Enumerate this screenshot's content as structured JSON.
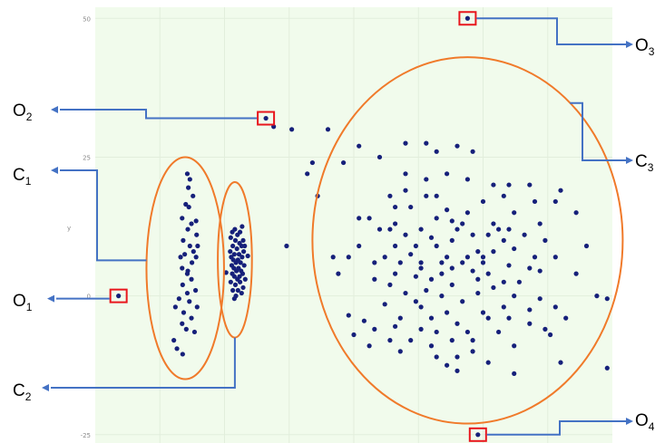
{
  "chart_data": {
    "type": "scatter",
    "title": "",
    "xlabel": "",
    "ylabel": "",
    "grid": true,
    "background": "#f1fbec",
    "point_color": "#16207a",
    "cluster_outline_color": "#f07a2a",
    "outlier_box_color": "#e8161d",
    "annotation_line_color": "#4472c4",
    "xlim": [
      0,
      100
    ],
    "ylim": [
      -26.5,
      52
    ],
    "yticks": [
      "50",
      "25",
      "0",
      "-25"
    ],
    "y_axis_marker": "y",
    "clusters": [
      {
        "label": "C",
        "sub": "1",
        "cx": 17.4,
        "cy": 5,
        "rx": 7.5,
        "ry": 20,
        "points": [
          [
            17.8,
            22
          ],
          [
            18.3,
            21
          ],
          [
            18.0,
            19.5
          ],
          [
            18.9,
            18
          ],
          [
            17.5,
            16.5
          ],
          [
            16.8,
            14
          ],
          [
            18.6,
            13
          ],
          [
            17.9,
            12
          ],
          [
            19.6,
            11
          ],
          [
            17.0,
            10
          ],
          [
            18.3,
            9
          ],
          [
            19.0,
            8
          ],
          [
            16.5,
            7
          ],
          [
            17.3,
            7.5
          ],
          [
            18.7,
            6
          ],
          [
            19.5,
            7
          ],
          [
            16.8,
            5
          ],
          [
            17.9,
            4.5
          ],
          [
            18.6,
            3
          ],
          [
            16.9,
            2
          ],
          [
            19.4,
            1
          ],
          [
            17.8,
            0.5
          ],
          [
            16.2,
            -0.5
          ],
          [
            18.2,
            -1
          ],
          [
            19.7,
            -2
          ],
          [
            17.1,
            -3
          ],
          [
            15.5,
            -2
          ],
          [
            18.6,
            -4
          ],
          [
            16.8,
            -5
          ],
          [
            17.6,
            -6
          ],
          [
            19.2,
            -6.5
          ],
          [
            15.2,
            -8
          ],
          [
            15.8,
            -9.5
          ],
          [
            16.9,
            -10.5
          ],
          [
            17.8,
            4
          ],
          [
            19.8,
            9
          ],
          [
            18.1,
            16
          ],
          [
            19.5,
            13.5
          ]
        ]
      },
      {
        "label": "C",
        "sub": "2",
        "cx": 27,
        "cy": 6.5,
        "rx": 3.3,
        "ry": 14,
        "points": [
          [
            27.0,
            12
          ],
          [
            28.0,
            11.5
          ],
          [
            27.5,
            11
          ],
          [
            26.2,
            10.5
          ],
          [
            28.6,
            10
          ],
          [
            27.1,
            10
          ],
          [
            27.9,
            9.5
          ],
          [
            26.6,
            9
          ],
          [
            28.3,
            9
          ],
          [
            27.4,
            8.5
          ],
          [
            26.1,
            8
          ],
          [
            28.7,
            8
          ],
          [
            27.8,
            7.5
          ],
          [
            26.9,
            7.5
          ],
          [
            26.3,
            7
          ],
          [
            28.4,
            7
          ],
          [
            27.6,
            6.5
          ],
          [
            26.7,
            6.5
          ],
          [
            28.1,
            6
          ],
          [
            27.2,
            6
          ],
          [
            26.4,
            5.5
          ],
          [
            28.8,
            5.5
          ],
          [
            27.7,
            5
          ],
          [
            26.8,
            5
          ],
          [
            28.2,
            4.5
          ],
          [
            27.3,
            4.5
          ],
          [
            26.5,
            4
          ],
          [
            28.5,
            4
          ],
          [
            27.9,
            3.5
          ],
          [
            26.9,
            3.5
          ],
          [
            27.5,
            3
          ],
          [
            26.2,
            2.5
          ],
          [
            28.0,
            2.5
          ],
          [
            27.1,
            2
          ],
          [
            28.6,
            1.5
          ],
          [
            27.6,
            1
          ],
          [
            26.6,
            1
          ],
          [
            28.3,
            0.5
          ],
          [
            27.2,
            0
          ],
          [
            26.9,
            -0.5
          ],
          [
            28.4,
            12.5
          ],
          [
            26.5,
            11.5
          ],
          [
            28.9,
            9
          ],
          [
            29.5,
            7.2
          ],
          [
            25.3,
            4.2
          ],
          [
            29.0,
            3
          ]
        ]
      },
      {
        "label": "C",
        "sub": "3",
        "cx": 72,
        "cy": 10,
        "rx": 30,
        "ry": 33,
        "points": [
          [
            38,
            30
          ],
          [
            42,
            24
          ],
          [
            41,
            22
          ],
          [
            48,
            24
          ],
          [
            51,
            27
          ],
          [
            60,
            27.5
          ],
          [
            64,
            27.5
          ],
          [
            70,
            27
          ],
          [
            73,
            26
          ],
          [
            66,
            26
          ],
          [
            55,
            25
          ],
          [
            68,
            22
          ],
          [
            60,
            22
          ],
          [
            64,
            21
          ],
          [
            72,
            21
          ],
          [
            77,
            20
          ],
          [
            80,
            20
          ],
          [
            84,
            20
          ],
          [
            90,
            19
          ],
          [
            79,
            18
          ],
          [
            57,
            18
          ],
          [
            43,
            18
          ],
          [
            60,
            19
          ],
          [
            64,
            18
          ],
          [
            66,
            18
          ],
          [
            75,
            17
          ],
          [
            85,
            17
          ],
          [
            89,
            17
          ],
          [
            58,
            16
          ],
          [
            61,
            16
          ],
          [
            68,
            15.5
          ],
          [
            72,
            15
          ],
          [
            81,
            15
          ],
          [
            93,
            15
          ],
          [
            51,
            14
          ],
          [
            53,
            14
          ],
          [
            66,
            14
          ],
          [
            69,
            13.5
          ],
          [
            77,
            13
          ],
          [
            86,
            13
          ],
          [
            55,
            12
          ],
          [
            57,
            12
          ],
          [
            63,
            12
          ],
          [
            70,
            12
          ],
          [
            80,
            12
          ],
          [
            60,
            11
          ],
          [
            73,
            11
          ],
          [
            76,
            11
          ],
          [
            83,
            11
          ],
          [
            65,
            10.5
          ],
          [
            69,
            10
          ],
          [
            79,
            10
          ],
          [
            87,
            10
          ],
          [
            95,
            9
          ],
          [
            51,
            9
          ],
          [
            37,
            9
          ],
          [
            58,
            9
          ],
          [
            62,
            9
          ],
          [
            66,
            9
          ],
          [
            74,
            8
          ],
          [
            77,
            8
          ],
          [
            81,
            8.5
          ],
          [
            46,
            7
          ],
          [
            49,
            7
          ],
          [
            56,
            7
          ],
          [
            61,
            7.5
          ],
          [
            68,
            7
          ],
          [
            72,
            7
          ],
          [
            75,
            7
          ],
          [
            85,
            7
          ],
          [
            89,
            7
          ],
          [
            54,
            6
          ],
          [
            59,
            6
          ],
          [
            63,
            6
          ],
          [
            67,
            6
          ],
          [
            71,
            6
          ],
          [
            80,
            5.5
          ],
          [
            84,
            5
          ],
          [
            63,
            5
          ],
          [
            69,
            5
          ],
          [
            73,
            4.5
          ],
          [
            76,
            4
          ],
          [
            86,
            4.5
          ],
          [
            93,
            4
          ],
          [
            58,
            4
          ],
          [
            47,
            4
          ],
          [
            54,
            3
          ],
          [
            62,
            3.5
          ],
          [
            65,
            3
          ],
          [
            74,
            3
          ],
          [
            79,
            2.5
          ],
          [
            82,
            2.5
          ],
          [
            57,
            2
          ],
          [
            69,
            2
          ],
          [
            77,
            1.5
          ],
          [
            64,
            1
          ],
          [
            60,
            0.5
          ],
          [
            67,
            0
          ],
          [
            74,
            0.5
          ],
          [
            81,
            0
          ],
          [
            86,
            -0.5
          ],
          [
            97,
            0
          ],
          [
            99,
            -0.5
          ],
          [
            71,
            -1
          ],
          [
            62,
            -1
          ],
          [
            56,
            -1.5
          ],
          [
            79,
            -2
          ],
          [
            89,
            -2
          ],
          [
            84,
            -2.5
          ],
          [
            75,
            -3
          ],
          [
            68,
            -3
          ],
          [
            49,
            -3.5
          ],
          [
            65,
            -4
          ],
          [
            59,
            -4
          ],
          [
            76,
            -4
          ],
          [
            80,
            -4
          ],
          [
            91,
            -4
          ],
          [
            52,
            -4.5
          ],
          [
            58,
            -5.5
          ],
          [
            70,
            -5
          ],
          [
            84,
            -5
          ],
          [
            54,
            -6
          ],
          [
            63,
            -6
          ],
          [
            66,
            -6.5
          ],
          [
            72,
            -6.5
          ],
          [
            78,
            -6.5
          ],
          [
            50,
            -7
          ],
          [
            88,
            -7
          ],
          [
            57,
            -8
          ],
          [
            61,
            -8
          ],
          [
            69,
            -8
          ],
          [
            73,
            -8
          ],
          [
            53,
            -9
          ],
          [
            65,
            -9
          ],
          [
            81,
            -9
          ],
          [
            59,
            -10
          ],
          [
            73,
            -10
          ],
          [
            66,
            -11
          ],
          [
            70,
            -11
          ],
          [
            76,
            -12
          ],
          [
            90,
            -12
          ],
          [
            99,
            -13
          ],
          [
            70,
            -13.5
          ],
          [
            68,
            -12.5
          ],
          [
            81,
            -14
          ],
          [
            34.5,
            30.5
          ],
          [
            45,
            30
          ],
          [
            78,
            12
          ],
          [
            71,
            13
          ],
          [
            58,
            13
          ],
          [
            75,
            6
          ],
          [
            63,
            -2
          ],
          [
            67,
            4
          ],
          [
            87,
            -6
          ]
        ]
      }
    ],
    "outliers": [
      {
        "label": "O",
        "sub": "1",
        "x": 4.5,
        "y": 0
      },
      {
        "label": "O",
        "sub": "2",
        "x": 33,
        "y": 32
      },
      {
        "label": "O",
        "sub": "3",
        "x": 72,
        "y": 50
      },
      {
        "label": "O",
        "sub": "4",
        "x": 74,
        "y": -25
      }
    ]
  }
}
